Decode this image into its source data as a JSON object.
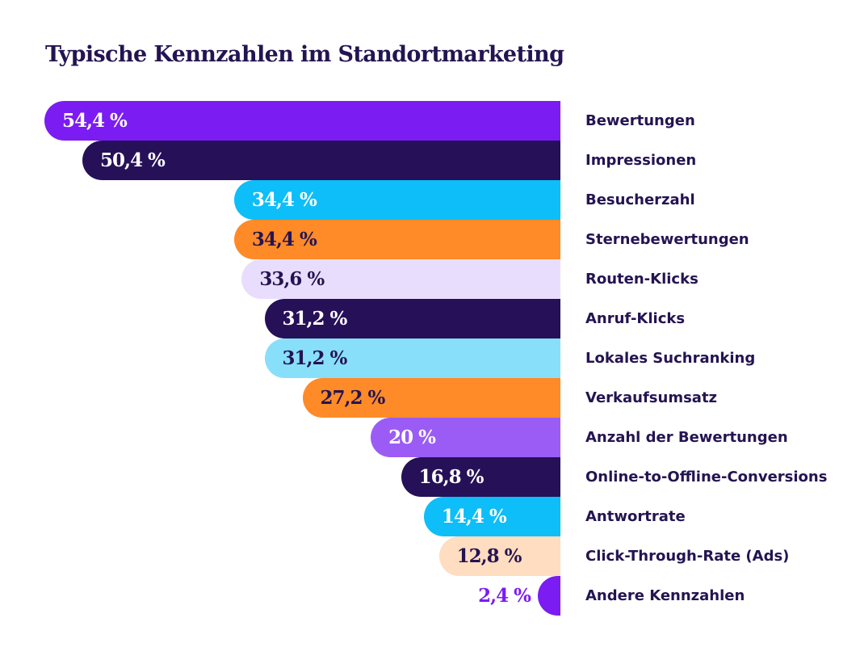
{
  "chart_data": {
    "type": "bar",
    "orientation": "horizontal",
    "title": "Typische Kennzahlen im Standortmarketing",
    "xlabel": "",
    "ylabel": "",
    "xlim": [
      0,
      54.4
    ],
    "grid": false,
    "legend": "none",
    "categories": [
      "Bewertungen",
      "Impressionen",
      "Besucherzahl",
      "Sternebewertungen",
      "Routen-Klicks",
      "Anruf-Klicks",
      "Lokales Suchranking",
      "Verkaufsumsatz",
      "Anzahl der Bewertungen",
      "Online-to-Offline-Conversions",
      "Antwortrate",
      "Click-Through-Rate (Ads)",
      "Andere Kennzahlen"
    ],
    "values": [
      54.4,
      50.4,
      34.4,
      34.4,
      33.6,
      31.2,
      31.2,
      27.2,
      20,
      16.8,
      14.4,
      12.8,
      2.4
    ],
    "value_labels": [
      "54,4 %",
      "50,4 %",
      "34,4 %",
      "34,4 %",
      "33,6 %",
      "31,2 %",
      "31,2 %",
      "27,2 %",
      "20 %",
      "16,8 %",
      "14,4 %",
      "12,8 %",
      "2,4 %"
    ],
    "bar_colors": [
      "#7B1CF2",
      "#261058",
      "#0DBEF8",
      "#FF8A28",
      "#E9DDFD",
      "#261058",
      "#88DFFA",
      "#FF8A28",
      "#9B5CF6",
      "#261058",
      "#0DBEF8",
      "#FFDDC0",
      "#7B1CF2"
    ],
    "label_colors": [
      "#FFFFFF",
      "#FFFFFF",
      "#FFFFFF",
      "#241452",
      "#241452",
      "#FFFFFF",
      "#241452",
      "#241452",
      "#FFFFFF",
      "#FFFFFF",
      "#FFFFFF",
      "#241452",
      "#7B1CF2"
    ]
  }
}
